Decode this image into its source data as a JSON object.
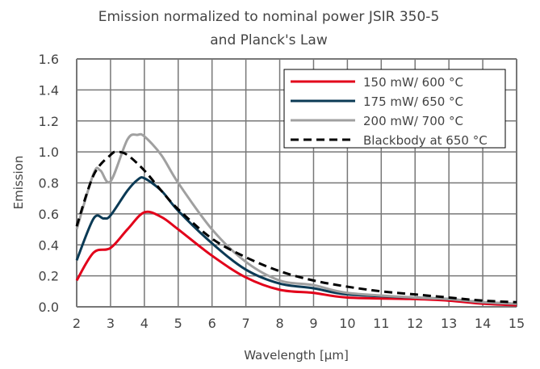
{
  "chart_data": {
    "type": "line",
    "title": [
      "Emission normalized to nominal power JSIR 350-5",
      "and Planck's Law"
    ],
    "xlabel": "Wavelength [µm]",
    "ylabel": "Emission",
    "xlim": [
      2,
      15
    ],
    "ylim": [
      0,
      1.6
    ],
    "xticks": [
      2,
      3,
      4,
      5,
      6,
      7,
      8,
      9,
      10,
      11,
      12,
      13,
      14,
      15
    ],
    "yticks": [
      "0.0",
      "0.2",
      "0.4",
      "0.6",
      "0.8",
      "1.0",
      "1.2",
      "1.4",
      "1.6"
    ],
    "grid": true,
    "legend_position": "top-right",
    "series": [
      {
        "name": "150 mW/ 600 °C",
        "color": "#e2001a",
        "dash": false,
        "x": [
          2,
          2.5,
          3,
          3.5,
          4,
          4.5,
          5,
          6,
          7,
          8,
          9,
          10,
          12,
          13,
          14,
          15
        ],
        "y": [
          0.17,
          0.35,
          0.38,
          0.5,
          0.61,
          0.58,
          0.5,
          0.33,
          0.19,
          0.11,
          0.09,
          0.06,
          0.05,
          0.04,
          0.02,
          0.01
        ]
      },
      {
        "name": "175 mW/ 650 °C",
        "color": "#0b3a55",
        "dash": false,
        "x": [
          2,
          2.5,
          2.8,
          3,
          3.5,
          3.8,
          4,
          4.5,
          5,
          6,
          7,
          8,
          9,
          10,
          12,
          13,
          14,
          15
        ],
        "y": [
          0.3,
          0.57,
          0.57,
          0.59,
          0.75,
          0.82,
          0.83,
          0.75,
          0.62,
          0.41,
          0.24,
          0.15,
          0.12,
          0.08,
          0.06,
          0.05,
          0.03,
          0.02
        ]
      },
      {
        "name": "200 mW/ 700 °C",
        "color": "#a0a0a0",
        "dash": false,
        "x": [
          2,
          2.5,
          2.7,
          3,
          3.5,
          3.8,
          4,
          4.5,
          5,
          6,
          7,
          8,
          9,
          10,
          12,
          13,
          14,
          15
        ],
        "y": [
          0.5,
          0.86,
          0.88,
          0.81,
          1.08,
          1.11,
          1.1,
          0.98,
          0.8,
          0.5,
          0.29,
          0.17,
          0.14,
          0.09,
          0.06,
          0.05,
          0.03,
          0.02
        ]
      },
      {
        "name": "Blackbody at 650 °C",
        "color": "#000000",
        "dash": true,
        "x": [
          2,
          2.5,
          3,
          3.2,
          3.5,
          4,
          4.5,
          5,
          6,
          7,
          8,
          9,
          10,
          11,
          12,
          13,
          14,
          15
        ],
        "y": [
          0.52,
          0.85,
          0.98,
          1.0,
          0.98,
          0.88,
          0.75,
          0.63,
          0.44,
          0.32,
          0.23,
          0.17,
          0.13,
          0.1,
          0.08,
          0.06,
          0.04,
          0.03
        ]
      }
    ]
  }
}
